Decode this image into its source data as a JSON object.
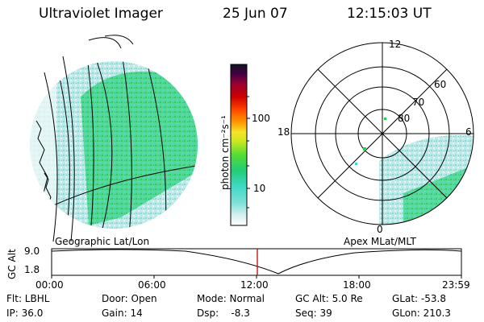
{
  "header": {
    "instrument": "Ultraviolet Imager",
    "date": "25 Jun 07",
    "time": "12:15:03 UT"
  },
  "colorbar": {
    "label": "photon cm⁻²s⁻¹",
    "ticks": [
      "100",
      "10"
    ]
  },
  "polar_plot": {
    "mlt_labels": [
      "12",
      "18",
      "6",
      "0"
    ],
    "lat_labels": [
      "60",
      "70",
      "80"
    ]
  },
  "geo_label": "Geographic Lat/Lon",
  "apex_label": "Apex MLat/MLT",
  "gc_alt_plot": {
    "axis_label": "GC Alt",
    "y_ticks": [
      "9.0",
      "1.8"
    ],
    "x_ticks": [
      "00:00",
      "06:00",
      "12:00",
      "18:00",
      "23:59"
    ]
  },
  "status": {
    "flt": "Flt: LBHL",
    "ip": "IP: 36.0",
    "door": "Door: Open",
    "gain": "Gain: 14",
    "mode": "Mode: Normal",
    "dsp": "Dsp:    -8.3",
    "gc_alt": "GC Alt: 5.0 Re",
    "seq": "Seq: 39",
    "glat": "GLat: -53.8",
    "glon": "GLon: 210.3"
  },
  "colors": {
    "marker": "#cc0000",
    "emission_low": "#bfe9e9",
    "emission_mid": "#3fd9c6",
    "emission_high": "#22cc55"
  }
}
